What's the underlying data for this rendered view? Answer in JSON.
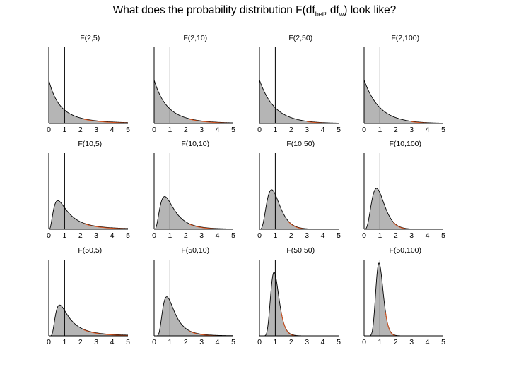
{
  "title": {
    "prefix": "What does the probability distribution F(df",
    "sub1": "bet",
    "mid": ", df",
    "sub2": "w",
    "suffix": ")  look like?"
  },
  "colors": {
    "fill": "#b5b5b5",
    "outline": "#000000",
    "tail": "#d9541e"
  },
  "chart_data": [
    {
      "type": "area",
      "title": "F(2,5)",
      "df1": 2,
      "df2": 5,
      "x": [
        0,
        1,
        2,
        3,
        4,
        5
      ],
      "xlim": [
        0,
        5
      ],
      "critical_marker": 1
    },
    {
      "type": "area",
      "title": "F(2,10)",
      "df1": 2,
      "df2": 10,
      "x": [
        0,
        1,
        2,
        3,
        4,
        5
      ],
      "xlim": [
        0,
        5
      ],
      "critical_marker": 1
    },
    {
      "type": "area",
      "title": "F(2,50)",
      "df1": 2,
      "df2": 50,
      "x": [
        0,
        1,
        2,
        3,
        4,
        5
      ],
      "xlim": [
        0,
        5
      ],
      "critical_marker": 1
    },
    {
      "type": "area",
      "title": "F(2,100)",
      "df1": 2,
      "df2": 100,
      "x": [
        0,
        1,
        2,
        3,
        4,
        5
      ],
      "xlim": [
        0,
        5
      ],
      "critical_marker": 1
    },
    {
      "type": "area",
      "title": "F(10,5)",
      "df1": 10,
      "df2": 5,
      "x": [
        0,
        1,
        2,
        3,
        4,
        5
      ],
      "xlim": [
        0,
        5
      ],
      "critical_marker": 1
    },
    {
      "type": "area",
      "title": "F(10,10)",
      "df1": 10,
      "df2": 10,
      "x": [
        0,
        1,
        2,
        3,
        4,
        5
      ],
      "xlim": [
        0,
        5
      ],
      "critical_marker": 1
    },
    {
      "type": "area",
      "title": "F(10,50)",
      "df1": 10,
      "df2": 50,
      "x": [
        0,
        1,
        2,
        3,
        4,
        5
      ],
      "xlim": [
        0,
        5
      ],
      "critical_marker": 1
    },
    {
      "type": "area",
      "title": "F(10,100)",
      "df1": 10,
      "df2": 100,
      "x": [
        0,
        1,
        2,
        3,
        4,
        5
      ],
      "xlim": [
        0,
        5
      ],
      "critical_marker": 1
    },
    {
      "type": "area",
      "title": "F(50,5)",
      "df1": 50,
      "df2": 5,
      "x": [
        0,
        1,
        2,
        3,
        4,
        5
      ],
      "xlim": [
        0,
        5
      ],
      "critical_marker": 1
    },
    {
      "type": "area",
      "title": "F(50,10)",
      "df1": 50,
      "df2": 10,
      "x": [
        0,
        1,
        2,
        3,
        4,
        5
      ],
      "xlim": [
        0,
        5
      ],
      "critical_marker": 1
    },
    {
      "type": "area",
      "title": "F(50,50)",
      "df1": 50,
      "df2": 50,
      "x": [
        0,
        1,
        2,
        3,
        4,
        5
      ],
      "xlim": [
        0,
        5
      ],
      "critical_marker": 1
    },
    {
      "type": "area",
      "title": "F(50,100)",
      "df1": 50,
      "df2": 100,
      "x": [
        0,
        1,
        2,
        3,
        4,
        5
      ],
      "xlim": [
        0,
        5
      ],
      "critical_marker": 1
    }
  ]
}
